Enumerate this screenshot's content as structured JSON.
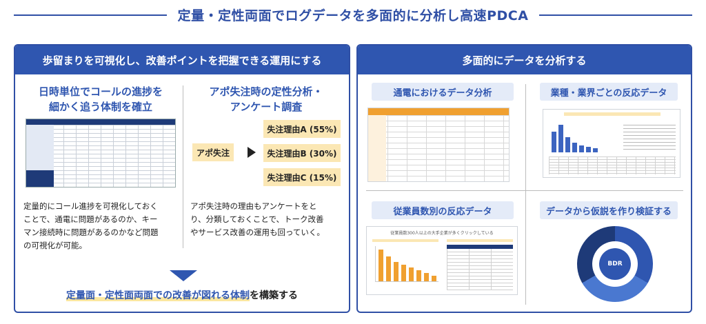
{
  "page_title": "定量・定性両面でログデータを多面的に分析し高速PDCA",
  "left_panel": {
    "header": "歩留まりを可視化し、改善ポイントを把握できる運用にする",
    "col_a": {
      "title_line1": "日時単位でコールの進捗を",
      "title_line2": "細かく追う体制を確立",
      "desc_lines": [
        "定量的にコール進捗を可視化しておく",
        "ことで、通電に問題があるのか、キー",
        "マン接続時に問題があるのかなど問題",
        "の可視化が可能。"
      ]
    },
    "col_b": {
      "title_line1": "アポ失注時の定性分析・",
      "title_line2": "アンケート調査",
      "apo_label": "アポ失注",
      "reasons": [
        "失注理由A (55%)",
        "失注理由B (30%)",
        "失注理由C (15%)"
      ],
      "desc_lines": [
        "アポ失注時の理由もアンケートをと",
        "り、分類しておくことで、トーク改善",
        "やサービス改善の運用も回っていく。"
      ]
    },
    "conclusion": {
      "highlight": "定量面・定性面両面での改善が図れる体制",
      "rest": "を構築する"
    }
  },
  "right_panel": {
    "header": "多面的にデータを分析する",
    "quadrants": [
      {
        "label": "通電におけるデータ分析"
      },
      {
        "label": "業種・業界ごとの反応データ"
      },
      {
        "label": "従業員数別の反応データ"
      },
      {
        "label": "データから仮説を作り検証する"
      }
    ],
    "employee_chart_title": "従業員数300人以上の大手企業が多くクリックしている",
    "cycle": {
      "center": "BDR"
    }
  },
  "colors": {
    "brand_blue": "#2f56b0",
    "title_blue": "#2f4fa5",
    "accent_yellow": "#fbe7b4",
    "orange": "#f0a030"
  }
}
